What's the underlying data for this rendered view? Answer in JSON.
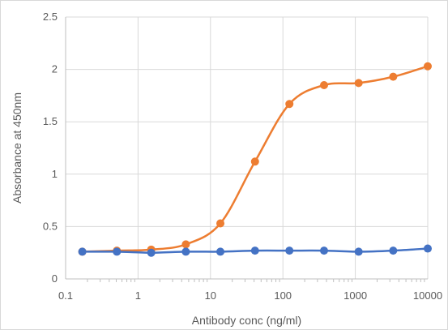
{
  "chart_data": {
    "type": "line",
    "title": "",
    "xlabel": "Antibody conc (ng/ml)",
    "ylabel": "Absorbance at 450nm",
    "x_scale": "log",
    "xlim": [
      0.1,
      10000
    ],
    "ylim": [
      0,
      2.5
    ],
    "x_ticks": [
      "0.1",
      "1",
      "10",
      "100",
      "1000",
      "10000"
    ],
    "y_ticks": [
      "0",
      "0.5",
      "1",
      "1.5",
      "2",
      "2.5"
    ],
    "grid": true,
    "legend": "none",
    "x": [
      0.17,
      0.51,
      1.52,
      4.57,
      13.7,
      41.2,
      123,
      370,
      1111,
      3333,
      10000
    ],
    "series": [
      {
        "color": "#ED7D31",
        "values": [
          0.26,
          0.27,
          0.28,
          0.33,
          0.53,
          1.12,
          1.67,
          1.85,
          1.87,
          1.93,
          2.03
        ]
      },
      {
        "color": "#4472C4",
        "values": [
          0.26,
          0.26,
          0.25,
          0.26,
          0.26,
          0.27,
          0.27,
          0.27,
          0.26,
          0.27,
          0.29
        ]
      }
    ]
  }
}
